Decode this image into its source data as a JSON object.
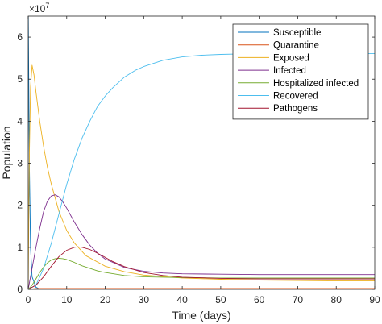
{
  "chart_data": {
    "type": "line",
    "title": "",
    "xlabel": "Time (days)",
    "ylabel": "Population",
    "exponent_label": "×10",
    "exponent_power": "7",
    "xlim": [
      0,
      90
    ],
    "ylim": [
      0,
      6.5
    ],
    "xticks": [
      0,
      10,
      20,
      30,
      40,
      50,
      60,
      70,
      80,
      90
    ],
    "xtick_labels": [
      "0",
      "10",
      "20",
      "30",
      "40",
      "50",
      "60",
      "70",
      "80",
      "90"
    ],
    "yticks": [
      0,
      1,
      2,
      3,
      4,
      5,
      6
    ],
    "ytick_labels": [
      "0",
      "1",
      "2",
      "3",
      "4",
      "5",
      "6"
    ],
    "y_scale_multiplier": 10000000,
    "grid": false,
    "legend_position": "top-right",
    "series": [
      {
        "name": "Susceptible",
        "color": "#0072BD",
        "x": [
          0,
          0.3,
          0.6,
          1,
          2,
          3,
          5,
          10,
          20,
          40,
          60,
          80,
          90
        ],
        "y": [
          6.8,
          3.0,
          1.0,
          0.3,
          0.05,
          0.01,
          0,
          0,
          0,
          0,
          0,
          0,
          0
        ]
      },
      {
        "name": "Quarantine",
        "color": "#D95319",
        "x": [
          0,
          1,
          2,
          5,
          10,
          20,
          30,
          40,
          60,
          80,
          90
        ],
        "y": [
          0,
          0.01,
          0.02,
          0.02,
          0.02,
          0.02,
          0.02,
          0.02,
          0.02,
          0.02,
          0.02
        ]
      },
      {
        "name": "Exposed",
        "color": "#EDB120",
        "x": [
          0,
          0.3,
          0.6,
          1,
          1.5,
          2,
          3,
          4,
          5,
          6,
          8,
          10,
          12,
          15,
          20,
          25,
          30,
          40,
          50,
          60,
          70,
          80,
          90
        ],
        "y": [
          0,
          3.2,
          4.8,
          5.33,
          5.1,
          4.7,
          4.0,
          3.4,
          2.9,
          2.5,
          1.85,
          1.4,
          1.1,
          0.8,
          0.55,
          0.42,
          0.34,
          0.27,
          0.24,
          0.22,
          0.21,
          0.2,
          0.2
        ]
      },
      {
        "name": "Infected",
        "color": "#7E2F8E",
        "x": [
          0,
          1,
          2,
          3,
          4,
          5,
          6,
          7,
          8,
          9,
          10,
          12,
          14,
          16,
          18,
          20,
          25,
          30,
          35,
          40,
          50,
          60,
          70,
          80,
          90
        ],
        "y": [
          0,
          0.5,
          1.0,
          1.45,
          1.85,
          2.1,
          2.22,
          2.25,
          2.2,
          2.08,
          1.93,
          1.6,
          1.3,
          1.05,
          0.86,
          0.72,
          0.52,
          0.43,
          0.39,
          0.37,
          0.36,
          0.35,
          0.35,
          0.35,
          0.35
        ]
      },
      {
        "name": "Hospitalized infected",
        "color": "#77AC30",
        "x": [
          0,
          1,
          2,
          3,
          4,
          5,
          6,
          7,
          8,
          9,
          10,
          12,
          14,
          16,
          18,
          20,
          25,
          30,
          40,
          50,
          60,
          70,
          80,
          90
        ],
        "y": [
          0,
          0.1,
          0.25,
          0.4,
          0.53,
          0.63,
          0.7,
          0.73,
          0.74,
          0.73,
          0.71,
          0.64,
          0.56,
          0.5,
          0.44,
          0.4,
          0.33,
          0.3,
          0.28,
          0.27,
          0.27,
          0.27,
          0.27,
          0.27
        ]
      },
      {
        "name": "Recovered",
        "color": "#4DBEEE",
        "x": [
          0,
          2,
          4,
          6,
          8,
          10,
          12,
          14,
          16,
          18,
          20,
          22,
          25,
          28,
          30,
          35,
          40,
          45,
          50,
          55,
          60,
          70,
          80,
          90
        ],
        "y": [
          0,
          0.1,
          0.5,
          1.1,
          1.8,
          2.5,
          3.1,
          3.6,
          4.0,
          4.35,
          4.6,
          4.8,
          5.05,
          5.22,
          5.3,
          5.45,
          5.53,
          5.57,
          5.59,
          5.6,
          5.61,
          5.61,
          5.61,
          5.61
        ]
      },
      {
        "name": "Pathogens",
        "color": "#A2142F",
        "x": [
          0,
          2,
          4,
          6,
          8,
          10,
          12,
          13,
          14,
          16,
          18,
          20,
          22,
          25,
          30,
          35,
          40,
          50,
          60,
          70,
          80,
          90
        ],
        "y": [
          0,
          0.1,
          0.3,
          0.55,
          0.78,
          0.93,
          1.0,
          1.01,
          1.0,
          0.95,
          0.86,
          0.76,
          0.66,
          0.54,
          0.4,
          0.33,
          0.29,
          0.26,
          0.25,
          0.25,
          0.25,
          0.25
        ]
      }
    ]
  }
}
